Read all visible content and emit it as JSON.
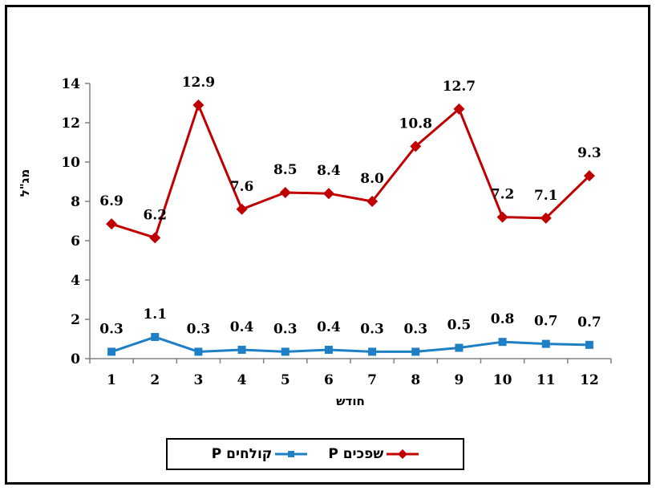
{
  "chart_data": {
    "type": "line",
    "xlabel": "חודש",
    "ylabel": "מג\"ל",
    "categories": [
      "1",
      "2",
      "3",
      "4",
      "5",
      "6",
      "7",
      "8",
      "9",
      "10",
      "11",
      "12"
    ],
    "ylim": [
      0,
      14
    ],
    "yticks": [
      "0",
      "2",
      "4",
      "6",
      "8",
      "10",
      "12",
      "14"
    ],
    "grid": false,
    "legend_position": "bottom",
    "series": [
      {
        "name": "P שפכים",
        "color": "#C00000",
        "marker": "diamond",
        "values": [
          6.85,
          6.15,
          12.9,
          7.6,
          8.45,
          8.4,
          8.0,
          10.8,
          12.7,
          7.2,
          7.15,
          9.3
        ],
        "labels": [
          "6.9",
          "6.2",
          "12.9",
          "7.6",
          "8.5",
          "8.4",
          "8.0",
          "10.8",
          "12.7",
          "7.2",
          "7.1",
          "9.3"
        ]
      },
      {
        "name": "P קולחים",
        "color": "#1F7FC6",
        "marker": "square",
        "values": [
          0.35,
          1.1,
          0.35,
          0.45,
          0.35,
          0.45,
          0.35,
          0.35,
          0.55,
          0.85,
          0.75,
          0.7
        ],
        "labels": [
          "0.3",
          "1.1",
          "0.3",
          "0.4",
          "0.3",
          "0.4",
          "0.3",
          "0.3",
          "0.5",
          "0.8",
          "0.7",
          "0.7"
        ]
      }
    ]
  }
}
